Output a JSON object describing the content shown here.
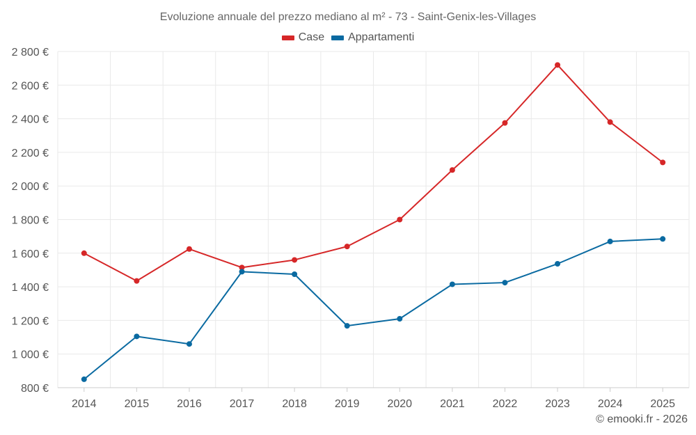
{
  "colors": {
    "case": "#d62728",
    "appartamenti": "#0a6aa1",
    "grid": "#e9e9e9",
    "text": "#555555"
  },
  "footer": {
    "credit": "© emooki.fr - 2026"
  },
  "chart_data": {
    "type": "line",
    "title": "Evoluzione annuale del prezzo mediano al m² - 73 - Saint-Genix-les-Villages",
    "xlabel": "",
    "ylabel": "",
    "legend_position": "top-center",
    "grid": true,
    "categories": [
      "2014",
      "2015",
      "2016",
      "2017",
      "2018",
      "2019",
      "2020",
      "2021",
      "2022",
      "2023",
      "2024",
      "2025"
    ],
    "ylim": [
      800,
      2800
    ],
    "yticks": [
      800,
      1000,
      1200,
      1400,
      1600,
      1800,
      2000,
      2200,
      2400,
      2600,
      2800
    ],
    "ytick_labels": [
      "800 €",
      "1 000 €",
      "1 200 €",
      "1 400 €",
      "1 600 €",
      "1 800 €",
      "2 000 €",
      "2 200 €",
      "2 400 €",
      "2 600 €",
      "2 800 €"
    ],
    "series": [
      {
        "name": "Case",
        "color": "#d62728",
        "values": [
          1600,
          1435,
          1625,
          1515,
          1560,
          1640,
          1800,
          2095,
          2375,
          2720,
          2380,
          2140
        ]
      },
      {
        "name": "Appartamenti",
        "color": "#0a6aa1",
        "values": [
          850,
          1105,
          1060,
          1490,
          1475,
          1168,
          1210,
          1415,
          1425,
          1537,
          1670,
          1685
        ]
      }
    ]
  }
}
